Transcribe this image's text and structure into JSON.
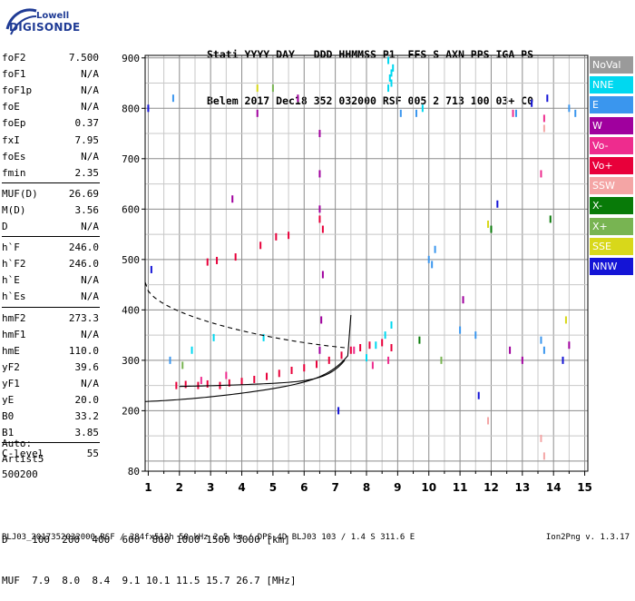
{
  "logo": {
    "line1": "Lowell",
    "line2": "DIGISONDE"
  },
  "header": {
    "line1": "Stati YYYY DAY   DDD HHMMSS P1  FFS S AXN PPS IGA PS",
    "line2": "Belem 2017 Dec18 352 032000 RSF 005 2 713 100 03+ C0"
  },
  "params": [
    {
      "name": "foF2",
      "value": "7.500"
    },
    {
      "name": "foF1",
      "value": "N/A"
    },
    {
      "name": "foF1p",
      "value": "N/A"
    },
    {
      "name": "foE",
      "value": "N/A"
    },
    {
      "name": "foEp",
      "value": "0.37"
    },
    {
      "name": "fxI",
      "value": "7.95"
    },
    {
      "name": "foEs",
      "value": "N/A"
    },
    {
      "name": "fmin",
      "value": "2.35"
    },
    {
      "name": "MUF(D)",
      "value": "26.69"
    },
    {
      "name": "M(D)",
      "value": "3.56"
    },
    {
      "name": "D",
      "value": "N/A"
    },
    {
      "name": "h`F",
      "value": "246.0"
    },
    {
      "name": "h`F2",
      "value": "246.0"
    },
    {
      "name": "h`E",
      "value": "N/A"
    },
    {
      "name": "h`Es",
      "value": "N/A"
    },
    {
      "name": "hmF2",
      "value": "273.3"
    },
    {
      "name": "hmF1",
      "value": "N/A"
    },
    {
      "name": "hmE",
      "value": "110.0"
    },
    {
      "name": "yF2",
      "value": "39.6"
    },
    {
      "name": "yF1",
      "value": "N/A"
    },
    {
      "name": "yE",
      "value": "20.0"
    },
    {
      "name": "B0",
      "value": "33.2"
    },
    {
      "name": "B1",
      "value": "3.85"
    },
    {
      "name": "C-level",
      "value": "55"
    }
  ],
  "auto": {
    "label": "Auto:",
    "artist": "Artist5",
    "version": "500200"
  },
  "legend": [
    {
      "label": "NoVal",
      "color": "#9a9a9a"
    },
    {
      "label": "NNE",
      "color": "#00d8f0"
    },
    {
      "label": "E",
      "color": "#3a96ee"
    },
    {
      "label": "W",
      "color": "#a0009e"
    },
    {
      "label": "Vo-",
      "color": "#ee2c8e"
    },
    {
      "label": "Vo+",
      "color": "#e8003a"
    },
    {
      "label": "SSW",
      "color": "#f4a5a5"
    },
    {
      "label": "X-",
      "color": "#087a08"
    },
    {
      "label": "X+",
      "color": "#78b452"
    },
    {
      "label": "SSE",
      "color": "#d8d81a"
    },
    {
      "label": "NNW",
      "color": "#1414d6"
    }
  ],
  "dmuf": {
    "line1": "D    100  200  400  600  800 1000 1500 3000 [km]",
    "line2": "MUF  7.9  8.0  8.4  9.1 10.1 11.5 15.7 26.7 [MHz]"
  },
  "footer": "BLJ03_2017352032000.RSF / 284fx512h 50 kHz 2.5 km / DPS-4D BLJ03 103 / 1.4 S 311.6 E",
  "version": "Ion2Png v. 1.3.17",
  "chart_data": {
    "type": "scatter",
    "title": "",
    "xlabel": "",
    "ylabel": "",
    "xlim": [
      0.9,
      15.1
    ],
    "ylim": [
      80,
      905
    ],
    "x_ticks": [
      1,
      2,
      3,
      4,
      5,
      6,
      7,
      8,
      9,
      10,
      11,
      12,
      13,
      14,
      15
    ],
    "y_ticks": [
      80,
      200,
      300,
      400,
      500,
      600,
      700,
      800,
      900
    ],
    "grid": true,
    "legend_position": "right",
    "series": [
      {
        "name": "Vo+",
        "color": "#e8003a",
        "points": [
          [
            1.9,
            250
          ],
          [
            2.2,
            252
          ],
          [
            2.6,
            250
          ],
          [
            2.9,
            253
          ],
          [
            3.3,
            250
          ],
          [
            3.6,
            255
          ],
          [
            4.0,
            258
          ],
          [
            4.4,
            262
          ],
          [
            4.8,
            268
          ],
          [
            5.2,
            274
          ],
          [
            5.6,
            280
          ],
          [
            6.0,
            285
          ],
          [
            6.4,
            292
          ],
          [
            6.8,
            300
          ],
          [
            7.2,
            310
          ],
          [
            7.5,
            320
          ],
          [
            7.8,
            325
          ],
          [
            8.1,
            330
          ],
          [
            8.5,
            335
          ],
          [
            8.8,
            325
          ],
          [
            2.9,
            495
          ],
          [
            3.2,
            498
          ],
          [
            3.8,
            505
          ],
          [
            4.6,
            528
          ],
          [
            5.1,
            545
          ],
          [
            5.5,
            548
          ],
          [
            6.5,
            580
          ],
          [
            6.6,
            560
          ]
        ]
      },
      {
        "name": "NNE",
        "color": "#00d8f0",
        "points": [
          [
            8.0,
            305
          ],
          [
            8.3,
            330
          ],
          [
            8.6,
            350
          ],
          [
            8.8,
            370
          ],
          [
            8.7,
            840
          ],
          [
            8.75,
            860
          ],
          [
            8.8,
            870
          ],
          [
            8.85,
            880
          ],
          [
            8.7,
            895
          ],
          [
            8.8,
            850
          ],
          [
            3.1,
            345
          ],
          [
            2.4,
            320
          ],
          [
            4.7,
            345
          ],
          [
            9.8,
            800
          ]
        ]
      },
      {
        "name": "E",
        "color": "#3a96ee",
        "points": [
          [
            10.0,
            500
          ],
          [
            10.1,
            490
          ],
          [
            10.2,
            520
          ],
          [
            14.5,
            800
          ],
          [
            14.7,
            790
          ],
          [
            13.6,
            340
          ],
          [
            13.7,
            320
          ],
          [
            9.1,
            790
          ],
          [
            9.6,
            790
          ],
          [
            12.8,
            790
          ],
          [
            1.8,
            820
          ],
          [
            1.7,
            300
          ],
          [
            11.5,
            350
          ],
          [
            11.0,
            360
          ]
        ]
      },
      {
        "name": "W",
        "color": "#a0009e",
        "points": [
          [
            6.5,
            750
          ],
          [
            6.5,
            670
          ],
          [
            6.5,
            600
          ],
          [
            6.6,
            470
          ],
          [
            6.55,
            380
          ],
          [
            6.5,
            320
          ],
          [
            4.5,
            790
          ],
          [
            3.7,
            620
          ],
          [
            12.6,
            320
          ],
          [
            14.5,
            330
          ],
          [
            13.0,
            300
          ],
          [
            5.8,
            820
          ],
          [
            11.1,
            420
          ]
        ]
      },
      {
        "name": "Vo-",
        "color": "#ee2c8e",
        "points": [
          [
            8.7,
            300
          ],
          [
            8.2,
            290
          ],
          [
            7.6,
            320
          ],
          [
            12.7,
            790
          ],
          [
            13.6,
            670
          ],
          [
            13.7,
            780
          ],
          [
            2.7,
            260
          ],
          [
            3.5,
            270
          ]
        ]
      },
      {
        "name": "SSW",
        "color": "#f4a5a5",
        "points": [
          [
            13.7,
            110
          ],
          [
            13.6,
            145
          ],
          [
            13.7,
            760
          ],
          [
            11.9,
            180
          ]
        ]
      },
      {
        "name": "X-",
        "color": "#087a08",
        "points": [
          [
            12.0,
            560
          ],
          [
            13.9,
            580
          ],
          [
            9.7,
            340
          ]
        ]
      },
      {
        "name": "X+",
        "color": "#78b452",
        "points": [
          [
            10.4,
            300
          ],
          [
            2.1,
            290
          ],
          [
            5.0,
            840
          ]
        ]
      },
      {
        "name": "SSE",
        "color": "#d8d81a",
        "points": [
          [
            11.9,
            570
          ],
          [
            14.4,
            380
          ],
          [
            4.5,
            840
          ]
        ]
      },
      {
        "name": "NNW",
        "color": "#1414d6",
        "points": [
          [
            1.0,
            800
          ],
          [
            1.1,
            480
          ],
          [
            13.3,
            810
          ],
          [
            13.8,
            820
          ],
          [
            14.3,
            300
          ],
          [
            12.2,
            610
          ],
          [
            11.6,
            230
          ],
          [
            7.1,
            200
          ]
        ]
      }
    ]
  }
}
